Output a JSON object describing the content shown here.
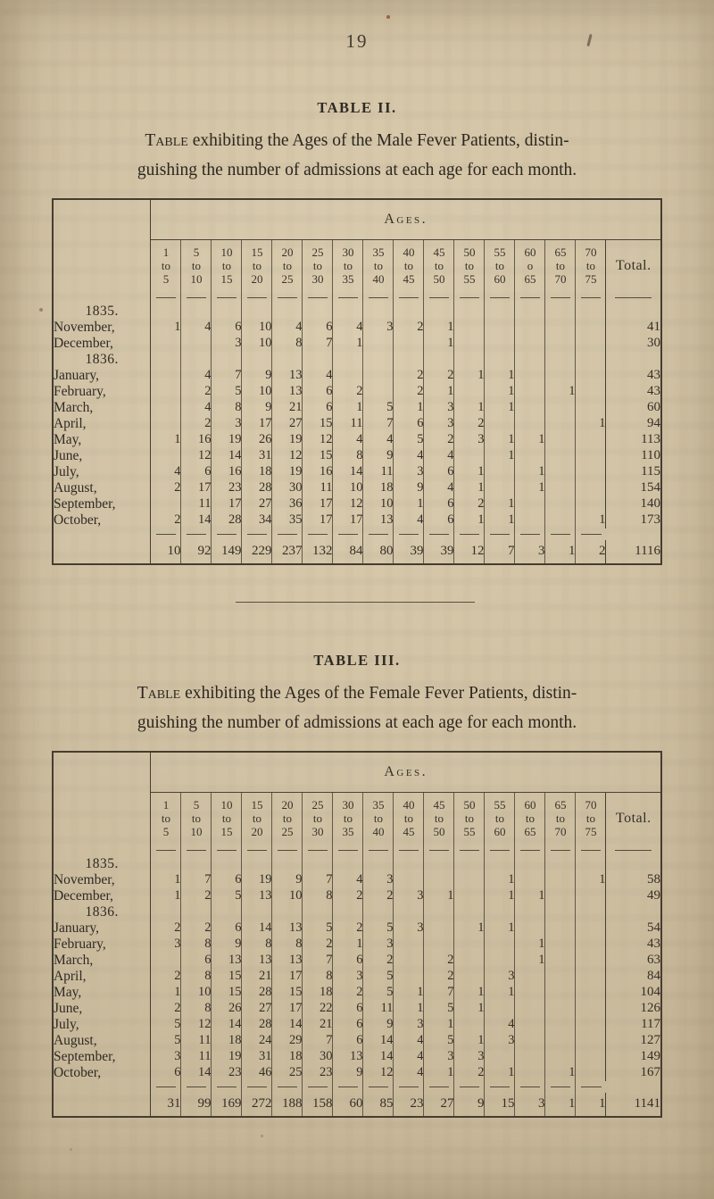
{
  "page_number": "19",
  "tables": [
    {
      "title": "TABLE II.",
      "description": {
        "lead_word": "Table",
        "line1_rest": " exhibiting the Ages of the Male Fever Patients, distin-",
        "line2": "guishing the number of admissions at each age for each month."
      },
      "ages_banner": "Ages.",
      "total_header": "Total.",
      "age_columns": [
        {
          "from": "1",
          "conn": "to",
          "to": "5"
        },
        {
          "from": "5",
          "conn": "to",
          "to": "10"
        },
        {
          "from": "10",
          "conn": "to",
          "to": "15"
        },
        {
          "from": "15",
          "conn": "to",
          "to": "20"
        },
        {
          "from": "20",
          "conn": "to",
          "to": "25"
        },
        {
          "from": "25",
          "conn": "to",
          "to": "30"
        },
        {
          "from": "30",
          "conn": "to",
          "to": "35"
        },
        {
          "from": "35",
          "conn": "to",
          "to": "40"
        },
        {
          "from": "40",
          "conn": "to",
          "to": "45"
        },
        {
          "from": "45",
          "conn": "to",
          "to": "50"
        },
        {
          "from": "50",
          "conn": "to",
          "to": "55"
        },
        {
          "from": "55",
          "conn": "to",
          "to": "60"
        },
        {
          "from": "60",
          "conn": "o",
          "to": "65"
        },
        {
          "from": "65",
          "conn": "to",
          "to": "70"
        },
        {
          "from": "70",
          "conn": "to",
          "to": "75"
        }
      ],
      "rows": [
        {
          "type": "year",
          "label": "1835."
        },
        {
          "type": "month",
          "label": "November,",
          "values": [
            "1",
            "4",
            "6",
            "10",
            "4",
            "6",
            "4",
            "3",
            "2",
            "1",
            "",
            "",
            "",
            "",
            ""
          ],
          "total": "41"
        },
        {
          "type": "month",
          "label": "December,",
          "values": [
            "",
            "",
            "3",
            "10",
            "8",
            "7",
            "1",
            "",
            "",
            "1",
            "",
            "",
            "",
            "",
            ""
          ],
          "total": "30"
        },
        {
          "type": "year",
          "label": "1836."
        },
        {
          "type": "month",
          "label": "January,",
          "values": [
            "",
            "4",
            "7",
            "9",
            "13",
            "4",
            "",
            "",
            "2",
            "2",
            "1",
            "1",
            "",
            "",
            ""
          ],
          "total": "43"
        },
        {
          "type": "month",
          "label": "February,",
          "values": [
            "",
            "2",
            "5",
            "10",
            "13",
            "6",
            "2",
            "",
            "2",
            "1",
            "",
            "1",
            "",
            "1",
            ""
          ],
          "total": "43"
        },
        {
          "type": "month",
          "label": "March,",
          "values": [
            "",
            "4",
            "8",
            "9",
            "21",
            "6",
            "1",
            "5",
            "1",
            "3",
            "1",
            "1",
            "",
            "",
            ""
          ],
          "total": "60"
        },
        {
          "type": "month",
          "label": "April,",
          "values": [
            "",
            "2",
            "3",
            "17",
            "27",
            "15",
            "11",
            "7",
            "6",
            "3",
            "2",
            "",
            "",
            "",
            "1"
          ],
          "total": "94"
        },
        {
          "type": "month",
          "label": "May,",
          "values": [
            "1",
            "16",
            "19",
            "26",
            "19",
            "12",
            "4",
            "4",
            "5",
            "2",
            "3",
            "1",
            "1",
            "",
            ""
          ],
          "total": "113"
        },
        {
          "type": "month",
          "label": "June,",
          "values": [
            "",
            "12",
            "14",
            "31",
            "12",
            "15",
            "8",
            "9",
            "4",
            "4",
            "",
            "1",
            "",
            "",
            ""
          ],
          "total": "110"
        },
        {
          "type": "month",
          "label": "July,",
          "values": [
            "4",
            "6",
            "16",
            "18",
            "19",
            "16",
            "14",
            "11",
            "3",
            "6",
            "1",
            "",
            "1",
            "",
            ""
          ],
          "total": "115"
        },
        {
          "type": "month",
          "label": "August,",
          "values": [
            "2",
            "17",
            "23",
            "28",
            "30",
            "11",
            "10",
            "18",
            "9",
            "4",
            "1",
            "",
            "1",
            "",
            ""
          ],
          "total": "154"
        },
        {
          "type": "month",
          "label": "September,",
          "values": [
            "",
            "11",
            "17",
            "27",
            "36",
            "17",
            "12",
            "10",
            "1",
            "6",
            "2",
            "1",
            "",
            "",
            ""
          ],
          "total": "140"
        },
        {
          "type": "month",
          "label": "October,",
          "values": [
            "2",
            "14",
            "28",
            "34",
            "35",
            "17",
            "17",
            "13",
            "4",
            "6",
            "1",
            "1",
            "",
            "",
            "1"
          ],
          "total": "173"
        }
      ],
      "totals": {
        "values": [
          "10",
          "92",
          "149",
          "229",
          "237",
          "132",
          "84",
          "80",
          "39",
          "39",
          "12",
          "7",
          "3",
          "1",
          "2"
        ],
        "grand": "1116"
      }
    },
    {
      "title": "TABLE III.",
      "description": {
        "lead_word": "Table",
        "line1_rest": " exhibiting the Ages of the Female Fever Patients, distin-",
        "line2": "guishing the number of admissions at each age for each month."
      },
      "ages_banner": "Ages.",
      "total_header": "Total.",
      "age_columns": [
        {
          "from": "1",
          "conn": "to",
          "to": "5"
        },
        {
          "from": "5",
          "conn": "to",
          "to": "10"
        },
        {
          "from": "10",
          "conn": "to",
          "to": "15"
        },
        {
          "from": "15",
          "conn": "to",
          "to": "20"
        },
        {
          "from": "20",
          "conn": "to",
          "to": "25"
        },
        {
          "from": "25",
          "conn": "to",
          "to": "30"
        },
        {
          "from": "30",
          "conn": "to",
          "to": "35"
        },
        {
          "from": "35",
          "conn": "to",
          "to": "40"
        },
        {
          "from": "40",
          "conn": "to",
          "to": "45"
        },
        {
          "from": "45",
          "conn": "to",
          "to": "50"
        },
        {
          "from": "50",
          "conn": "to",
          "to": "55"
        },
        {
          "from": "55",
          "conn": "to",
          "to": "60"
        },
        {
          "from": "60",
          "conn": "to",
          "to": "65"
        },
        {
          "from": "65",
          "conn": "to",
          "to": "70"
        },
        {
          "from": "70",
          "conn": "to",
          "to": "75"
        }
      ],
      "rows": [
        {
          "type": "year",
          "label": "1835."
        },
        {
          "type": "month",
          "label": "November,",
          "values": [
            "1",
            "7",
            "6",
            "19",
            "9",
            "7",
            "4",
            "3",
            "",
            "",
            "",
            "1",
            "",
            "",
            "1"
          ],
          "total": "58"
        },
        {
          "type": "month",
          "label": "December,",
          "values": [
            "1",
            "2",
            "5",
            "13",
            "10",
            "8",
            "2",
            "2",
            "3",
            "1",
            "",
            "1",
            "1",
            "",
            ""
          ],
          "total": "49"
        },
        {
          "type": "year",
          "label": "1836."
        },
        {
          "type": "month",
          "label": "January,",
          "values": [
            "2",
            "2",
            "6",
            "14",
            "13",
            "5",
            "2",
            "5",
            "3",
            "",
            "1",
            "1",
            "",
            "",
            ""
          ],
          "total": "54"
        },
        {
          "type": "month",
          "label": "February,",
          "values": [
            "3",
            "8",
            "9",
            "8",
            "8",
            "2",
            "1",
            "3",
            "",
            "",
            "",
            "",
            "1",
            "",
            ""
          ],
          "total": "43"
        },
        {
          "type": "month",
          "label": "March,",
          "values": [
            "",
            "6",
            "13",
            "13",
            "13",
            "7",
            "6",
            "2",
            "",
            "2",
            "",
            "",
            "1",
            "",
            ""
          ],
          "total": "63"
        },
        {
          "type": "month",
          "label": "April,",
          "values": [
            "2",
            "8",
            "15",
            "21",
            "17",
            "8",
            "3",
            "5",
            "",
            "2",
            "",
            "3",
            "",
            "",
            ""
          ],
          "total": "84"
        },
        {
          "type": "month",
          "label": "May,",
          "values": [
            "1",
            "10",
            "15",
            "28",
            "15",
            "18",
            "2",
            "5",
            "1",
            "7",
            "1",
            "1",
            "",
            "",
            ""
          ],
          "total": "104"
        },
        {
          "type": "month",
          "label": "June,",
          "values": [
            "2",
            "8",
            "26",
            "27",
            "17",
            "22",
            "6",
            "11",
            "1",
            "5",
            "1",
            "",
            "",
            "",
            ""
          ],
          "total": "126"
        },
        {
          "type": "month",
          "label": "July,",
          "values": [
            "5",
            "12",
            "14",
            "28",
            "14",
            "21",
            "6",
            "9",
            "3",
            "1",
            "",
            "4",
            "",
            "",
            ""
          ],
          "total": "117"
        },
        {
          "type": "month",
          "label": "August,",
          "values": [
            "5",
            "11",
            "18",
            "24",
            "29",
            "7",
            "6",
            "14",
            "4",
            "5",
            "1",
            "3",
            "",
            "",
            ""
          ],
          "total": "127"
        },
        {
          "type": "month",
          "label": "September,",
          "values": [
            "3",
            "11",
            "19",
            "31",
            "18",
            "30",
            "13",
            "14",
            "4",
            "3",
            "3",
            "",
            "",
            "",
            ""
          ],
          "total": "149"
        },
        {
          "type": "month",
          "label": "October,",
          "values": [
            "6",
            "14",
            "23",
            "46",
            "25",
            "23",
            "9",
            "12",
            "4",
            "1",
            "2",
            "1",
            "",
            "1",
            ""
          ],
          "total": "167"
        }
      ],
      "totals": {
        "values": [
          "31",
          "99",
          "169",
          "272",
          "188",
          "158",
          "60",
          "85",
          "23",
          "27",
          "9",
          "15",
          "3",
          "1",
          "1"
        ],
        "grand": "1141"
      }
    }
  ]
}
